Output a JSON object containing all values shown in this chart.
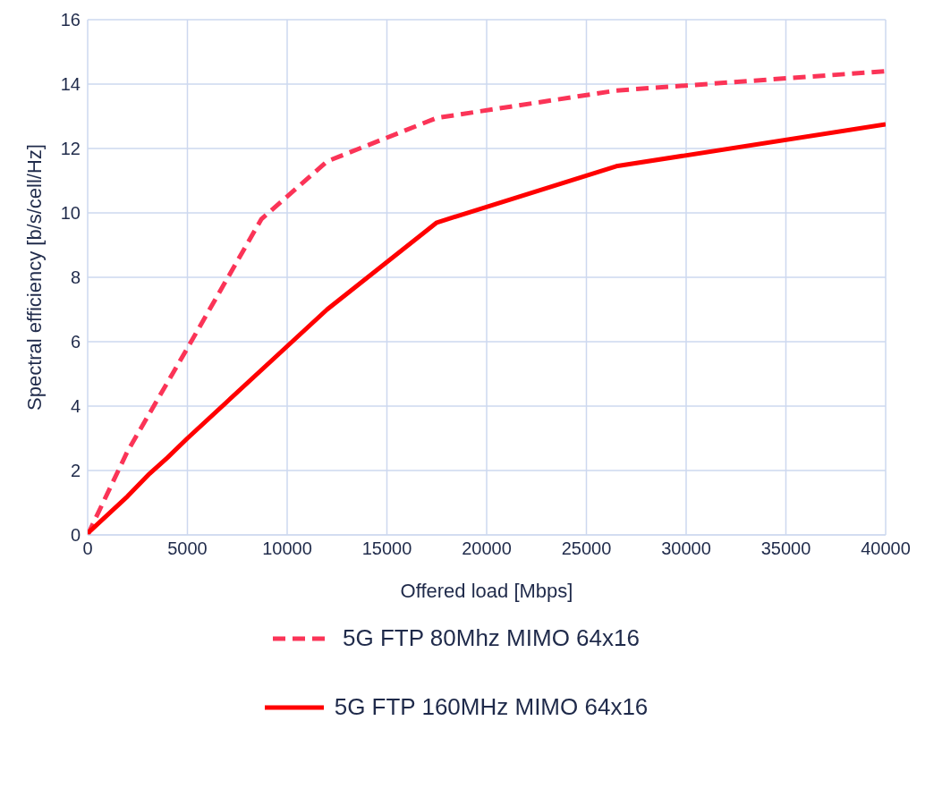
{
  "chart_data": {
    "type": "line",
    "xlabel": "Offered load [Mbps]",
    "ylabel": "Spectral efficiency [b/s/cell/Hz]",
    "xlim": [
      0,
      40000
    ],
    "xticks": [
      0,
      5000,
      10000,
      15000,
      20000,
      25000,
      30000,
      35000,
      40000
    ],
    "ylim": [
      0,
      16
    ],
    "yticks": [
      0,
      2,
      4,
      6,
      8,
      10,
      12,
      14,
      16
    ],
    "grid": true,
    "legend": "bottom",
    "marker": "none",
    "series": [
      {
        "name": "5G FTP 80Mhz MIMO 64x16",
        "color": "#fb3457",
        "line_style": "dashed",
        "x": [
          0,
          2000,
          5000,
          8700,
          12000,
          17500,
          26500,
          40000
        ],
        "values": [
          0,
          2.6,
          5.8,
          9.8,
          11.6,
          12.95,
          13.8,
          14.4
        ]
      },
      {
        "name": "5G FTP 160MHz MIMO 64x16",
        "color": "#ff0000",
        "line_style": "solid",
        "x": [
          0,
          2000,
          3100,
          4000,
          5000,
          12000,
          17500,
          26500,
          40000
        ],
        "values": [
          0.05,
          1.2,
          1.9,
          2.4,
          3.0,
          7.0,
          9.7,
          11.45,
          12.75
        ]
      }
    ]
  }
}
